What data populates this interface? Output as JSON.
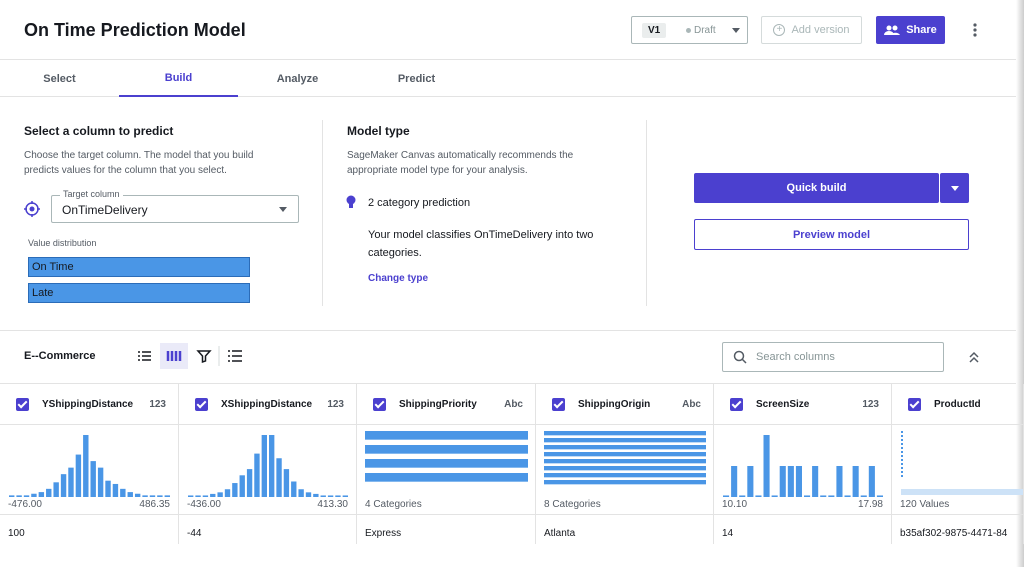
{
  "header": {
    "title": "On Time Prediction Model",
    "version": "V1",
    "status": "Draft",
    "add_version": "Add version",
    "share": "Share"
  },
  "tabs": [
    "Select",
    "Build",
    "Analyze",
    "Predict"
  ],
  "active_tab": 1,
  "target": {
    "heading": "Select a column to predict",
    "description": "Choose the target column. The model that you build predicts values for the column that you select.",
    "field_label": "Target column",
    "field_value": "OnTimeDelivery",
    "distribution_label": "Value distribution",
    "distribution": [
      "On Time",
      "Late"
    ]
  },
  "model_type": {
    "heading": "Model type",
    "description": "SageMaker Canvas automatically recommends the appropriate model type for your analysis.",
    "prediction": "2 category prediction",
    "explanation": "Your model classifies OnTimeDelivery into two categories.",
    "change_link": "Change type"
  },
  "actions": {
    "quick_build": "Quick build",
    "preview": "Preview model"
  },
  "dataset": {
    "name": "E--Commerce",
    "search_placeholder": "Search columns"
  },
  "columns": [
    {
      "name": "YShippingDistance",
      "type": "123",
      "kind": "numeric",
      "summary_min": "-476.00",
      "summary_max": "486.35",
      "sample": "100",
      "histogram": [
        1,
        1,
        1,
        2,
        3,
        5,
        9,
        14,
        18,
        26,
        38,
        22,
        18,
        10,
        8,
        5,
        3,
        2,
        1,
        1,
        1,
        1
      ]
    },
    {
      "name": "XShippingDistance",
      "type": "123",
      "kind": "numeric",
      "summary_min": "-436.00",
      "summary_max": "413.30",
      "sample": "-44",
      "histogram": [
        1,
        1,
        1,
        2,
        3,
        5,
        9,
        14,
        18,
        28,
        40,
        40,
        25,
        18,
        10,
        5,
        3,
        2,
        1,
        1,
        1,
        1
      ]
    },
    {
      "name": "ShippingPriority",
      "type": "Abc",
      "kind": "categorical",
      "summary": "4 Categories",
      "sample": "Express",
      "histogram": [
        1,
        1,
        1,
        1
      ]
    },
    {
      "name": "ShippingOrigin",
      "type": "Abc",
      "kind": "categorical",
      "summary": "8 Categories",
      "sample": "Atlanta",
      "histogram": [
        1,
        1,
        1,
        1,
        1,
        1,
        1,
        1
      ]
    },
    {
      "name": "ScreenSize",
      "type": "123",
      "kind": "numeric",
      "summary_min": "10.10",
      "summary_max": "17.98",
      "sample": "14",
      "histogram": [
        1,
        20,
        1,
        20,
        1,
        40,
        1,
        20,
        20,
        20,
        1,
        20,
        1,
        1,
        20,
        1,
        20,
        1,
        20,
        1
      ]
    },
    {
      "name": "ProductId",
      "kind": "unique",
      "summary": "120 Values",
      "sample": "b35af302-9875-4471-84"
    }
  ]
}
